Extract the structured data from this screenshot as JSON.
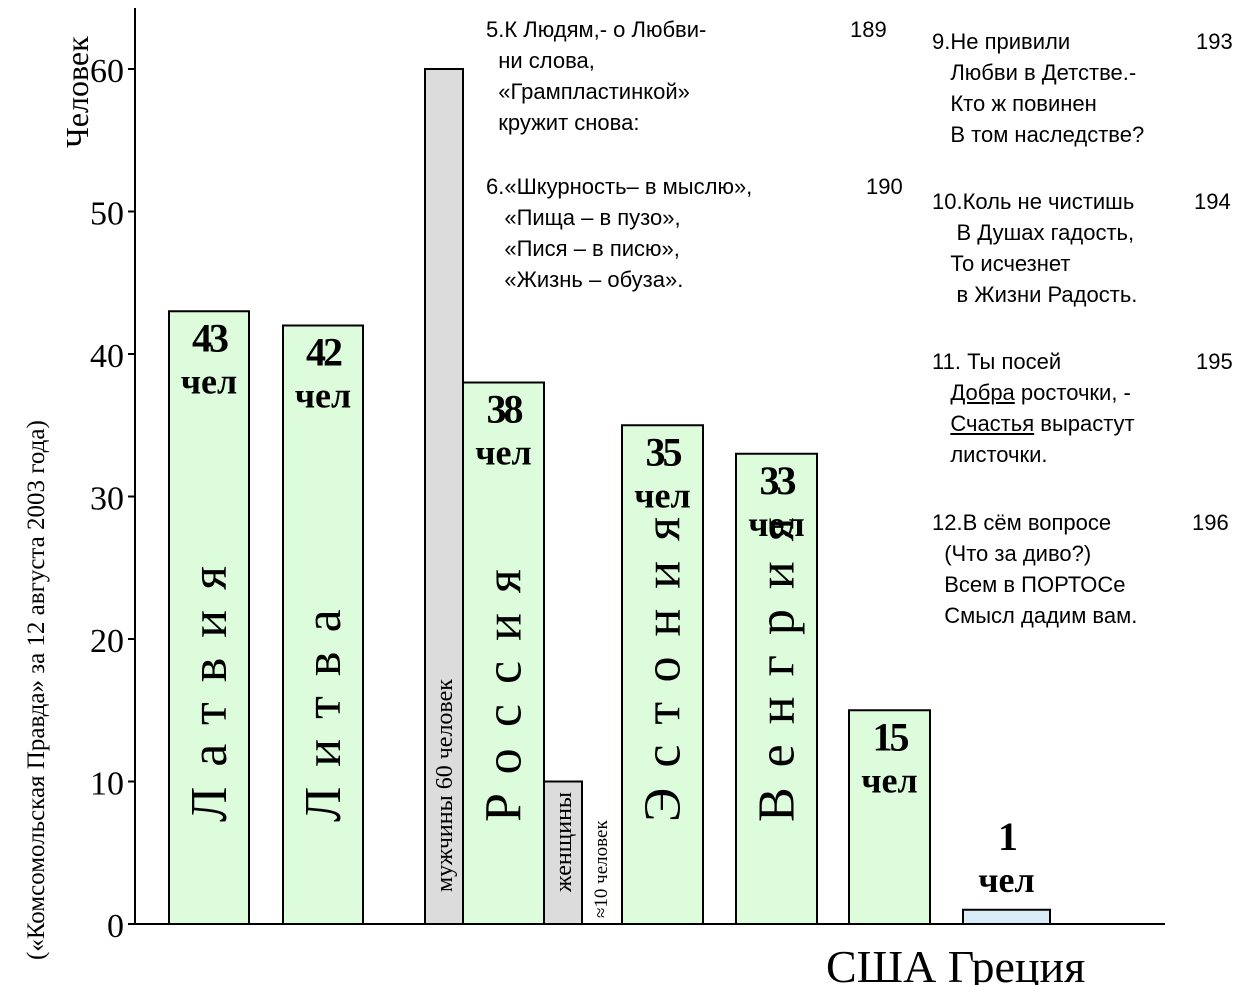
{
  "colors": {
    "bar_fill": "#dcfcdc",
    "bar_stroke": "#000000",
    "men_fill": "#dcdcdc",
    "women_fill": "#dcdcdc",
    "last_fill": "#d7ecf7"
  },
  "chart_data": {
    "type": "bar",
    "ylabel": "Человек",
    "side_label": "(«Комсомольская Правда» за 12 августа 2003 года)",
    "ylim": [
      0,
      65
    ],
    "yticks": [
      "0",
      "10",
      "20",
      "30",
      "40",
      "50",
      "60"
    ],
    "grid": false,
    "bars": [
      {
        "id": "latvia",
        "value": 43,
        "name": "Латвия",
        "label_top": "43",
        "label_bottom": "чел"
      },
      {
        "id": "lithuania",
        "value": 42,
        "name": "Литва",
        "label_top": "42",
        "label_bottom": "чел"
      },
      {
        "id": "men",
        "value": 60,
        "name": "мужчины 60 человек",
        "label_top": "",
        "label_bottom": ""
      },
      {
        "id": "russia",
        "value": 38,
        "name": "Россия",
        "label_top": "38",
        "label_bottom": "чел"
      },
      {
        "id": "women",
        "value": 10,
        "name": "женщины",
        "label_top": "",
        "label_bottom": ""
      },
      {
        "id": "estonia",
        "value": 35,
        "name": "Эстония",
        "label_top": "35",
        "label_bottom": "чел"
      },
      {
        "id": "hungary",
        "value": 33,
        "name": "Венгрия",
        "label_top": "33",
        "label_bottom": "чел"
      },
      {
        "id": "usa",
        "value": 15,
        "name": "",
        "label_top": "15",
        "label_bottom": "чел"
      },
      {
        "id": "greece",
        "value": 1,
        "name": "",
        "label_top": "1",
        "label_bottom": "чел"
      }
    ],
    "women_note": "≈10 человек",
    "bottom_label": "США Греция"
  },
  "poems": [
    {
      "number": "189",
      "lines": [
        "5.К Людям,- о Любви-",
        "  ни слова,",
        "  «Грампластинкой»",
        "  кружит снова:"
      ]
    },
    {
      "number": "190",
      "lines": [
        "6.«Шкурность– в мыслю»,",
        "   «Пища – в пузо»,",
        "   «Пися – в писю»,",
        "   «Жизнь – обуза»."
      ]
    },
    {
      "number": "193",
      "lines": [
        "9.Не привили",
        "   Любви в Детстве.-",
        "   Кто ж повинен",
        "   В том наследстве?"
      ]
    },
    {
      "number": "194",
      "lines": [
        "10.Коль не чистишь",
        "    В Душах гадость,",
        "   То исчезнет",
        "    в Жизни Радость."
      ]
    },
    {
      "number": "195",
      "lines": [
        "11. Ты посей",
        "Добра",
        " росточки, -",
        "Счастья",
        " вырастут",
        "   листочки."
      ]
    },
    {
      "number": "196",
      "lines": [
        "12.В сём вопросе",
        "  (Что за диво?)",
        "  Всем в ПОРТОСе",
        "  Смысл дадим вам."
      ]
    }
  ]
}
